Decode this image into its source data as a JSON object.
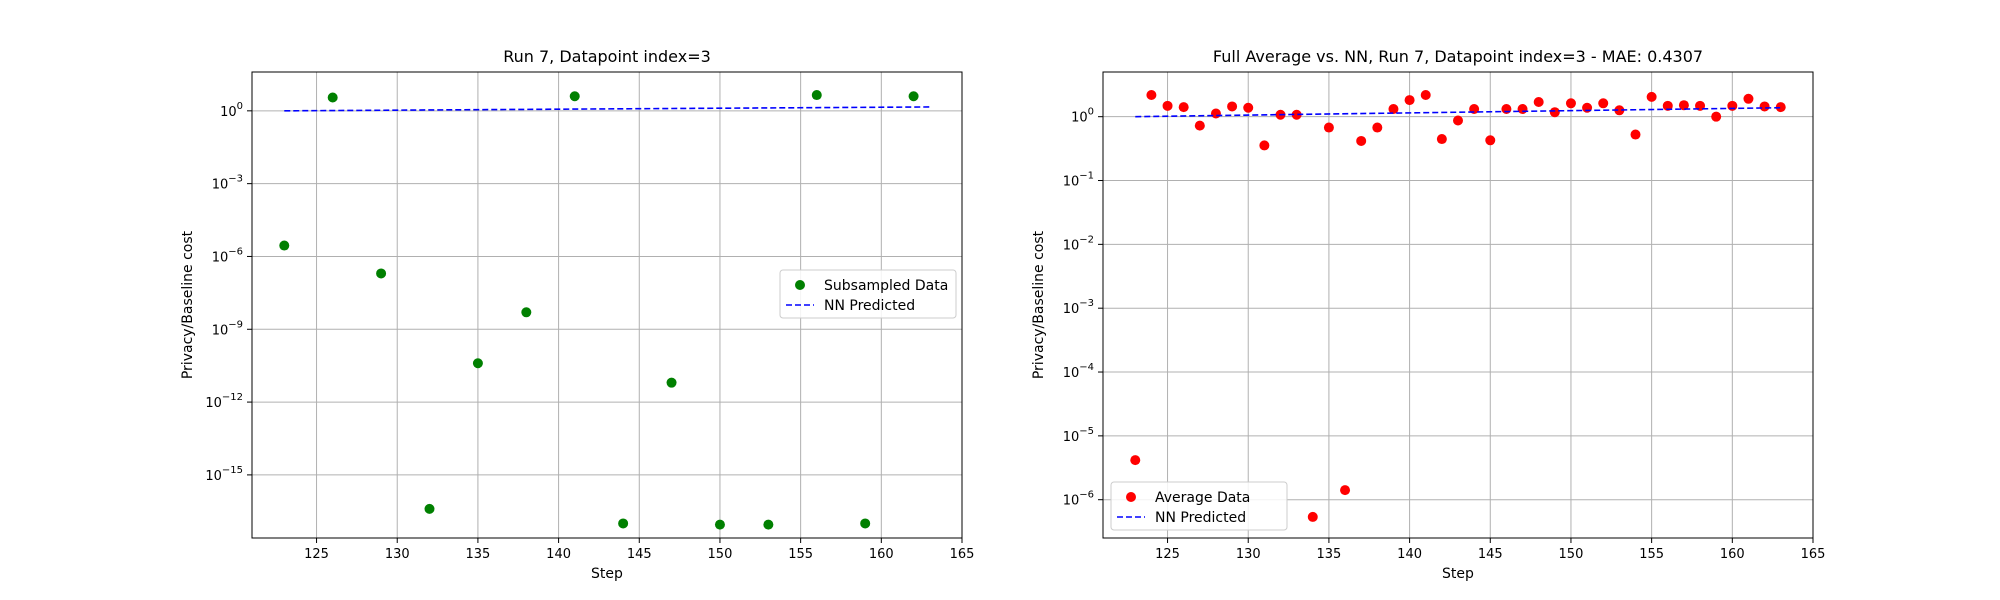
{
  "chart_data": [
    {
      "type": "scatter",
      "title": "Run 7, Datapoint index=3",
      "xlabel": "Step",
      "ylabel": "Privacy/Baseline cost",
      "xlim": [
        121,
        165
      ],
      "ylim_exp": [
        -17.6,
        1.6
      ],
      "yscale": "log",
      "grid": true,
      "legend_position": "center-right",
      "x_ticks": [
        125,
        130,
        135,
        140,
        145,
        150,
        155,
        160,
        165
      ],
      "x_tick_labels": [
        "125",
        "130",
        "135",
        "140",
        "145",
        "150",
        "155",
        "160",
        "165"
      ],
      "y_ticks_exp": [
        -15,
        -12,
        -9,
        -6,
        -3,
        0
      ],
      "y_tick_labels": [
        "10",
        "10",
        "10",
        "10",
        "10",
        "10"
      ],
      "y_tick_exponents": [
        "−15",
        "−12",
        "−9",
        "−6",
        "−3",
        "0"
      ],
      "series": [
        {
          "name": "Subsampled Data",
          "kind": "points",
          "color": "#008000",
          "x": [
            123,
            126,
            129,
            132,
            135,
            138,
            141,
            144,
            147,
            150,
            153,
            156,
            159,
            162
          ],
          "y_exp": [
            -5.55,
            0.55,
            -6.7,
            -16.4,
            -10.4,
            -8.3,
            0.6,
            -17.0,
            -11.2,
            -17.05,
            -17.05,
            0.65,
            -17.0,
            0.6
          ]
        },
        {
          "name": "NN Predicted",
          "kind": "dashed-line",
          "color": "#0000ff",
          "x": [
            123,
            163
          ],
          "y_exp": [
            0.0,
            0.16
          ]
        }
      ]
    },
    {
      "type": "scatter",
      "title": "Full Average vs. NN, Run 7, Datapoint index=3 - MAE: 0.4307",
      "xlabel": "Step",
      "ylabel": "Privacy/Baseline cost",
      "xlim": [
        121,
        165
      ],
      "ylim_exp": [
        -6.6,
        0.7
      ],
      "yscale": "log",
      "grid": true,
      "legend_position": "lower-left",
      "x_ticks": [
        125,
        130,
        135,
        140,
        145,
        150,
        155,
        160,
        165
      ],
      "x_tick_labels": [
        "125",
        "130",
        "135",
        "140",
        "145",
        "150",
        "155",
        "160",
        "165"
      ],
      "y_ticks_exp": [
        -6,
        -5,
        -4,
        -3,
        -2,
        -1,
        0
      ],
      "y_tick_labels": [
        "10",
        "10",
        "10",
        "10",
        "10",
        "10",
        "10"
      ],
      "y_tick_exponents": [
        "−6",
        "−5",
        "−4",
        "−3",
        "−2",
        "−1",
        "0"
      ],
      "series": [
        {
          "name": "Average Data",
          "kind": "points",
          "color": "#ff0000",
          "x": [
            123,
            124,
            125,
            126,
            127,
            128,
            129,
            130,
            131,
            132,
            133,
            134,
            135,
            136,
            137,
            138,
            139,
            140,
            141,
            142,
            143,
            144,
            145,
            146,
            147,
            148,
            149,
            150,
            151,
            152,
            153,
            154,
            155,
            156,
            157,
            158,
            159,
            160,
            161,
            162,
            163
          ],
          "y_exp": [
            -5.38,
            0.34,
            0.17,
            0.15,
            -0.14,
            0.05,
            0.16,
            0.14,
            -0.45,
            0.03,
            0.03,
            -6.27,
            -0.17,
            -5.85,
            -0.38,
            -0.17,
            0.12,
            0.26,
            0.34,
            -0.35,
            -0.06,
            0.12,
            -0.37,
            0.12,
            0.12,
            0.23,
            0.07,
            0.21,
            0.14,
            0.21,
            0.1,
            -0.28,
            0.31,
            0.17,
            0.18,
            0.17,
            0.0,
            0.17,
            0.28,
            0.16,
            0.15
          ]
        },
        {
          "name": "NN Predicted",
          "kind": "dashed-line",
          "color": "#0000ff",
          "x": [
            123,
            163
          ],
          "y_exp": [
            0.0,
            0.14
          ]
        }
      ]
    }
  ]
}
